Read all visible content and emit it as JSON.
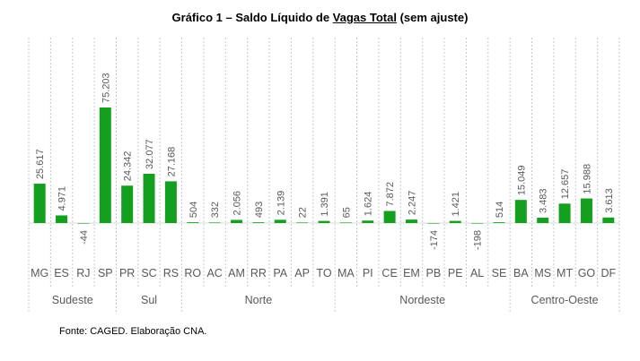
{
  "title": {
    "prefix": "Gráfico 1 – Saldo Líquido de ",
    "underlined": "Vagas Total",
    "suffix": " (sem ajuste)"
  },
  "source": "Fonte: CAGED. Elaboração CNA.",
  "colors": {
    "bar": "#14A01E",
    "bar_dark": "#0E7A15",
    "grid": "#c8c8c8",
    "text": "#595959"
  },
  "chart_data": {
    "type": "bar",
    "categories": [
      "MG",
      "ES",
      "RJ",
      "SP",
      "PR",
      "SC",
      "RS",
      "RO",
      "AC",
      "AM",
      "RR",
      "PA",
      "AP",
      "TO",
      "MA",
      "PI",
      "CE",
      "EM",
      "PB",
      "PE",
      "AL",
      "SE",
      "BA",
      "MS",
      "MT",
      "GO",
      "DF"
    ],
    "values": [
      25617,
      4971,
      -44,
      75203,
      24342,
      32077,
      27168,
      504,
      332,
      2056,
      493,
      2139,
      22,
      1391,
      65,
      1624,
      7872,
      2247,
      -174,
      1421,
      -198,
      514,
      15049,
      3483,
      12657,
      15988,
      3613
    ],
    "data_labels": [
      "25.617",
      "4.971",
      "-44",
      "75.203",
      "24.342",
      "32.077",
      "27.168",
      "504",
      "332",
      "2.056",
      "493",
      "2.139",
      "22",
      "1.391",
      "65",
      "1.624",
      "7.872",
      "2.247",
      "-174",
      "1.421",
      "-198",
      "514",
      "15.049",
      "3.483",
      "12.657",
      "15.988",
      "3.613"
    ],
    "groups": [
      {
        "label": "Sudeste",
        "count": 4
      },
      {
        "label": "Sul",
        "count": 3
      },
      {
        "label": "Norte",
        "count": 7
      },
      {
        "label": "Nordeste",
        "count": 8
      },
      {
        "label": "Centro-Oeste",
        "count": 5
      }
    ],
    "xlabel": "",
    "ylabel": "",
    "grid": "vertical dashed separators",
    "legend": "none"
  }
}
